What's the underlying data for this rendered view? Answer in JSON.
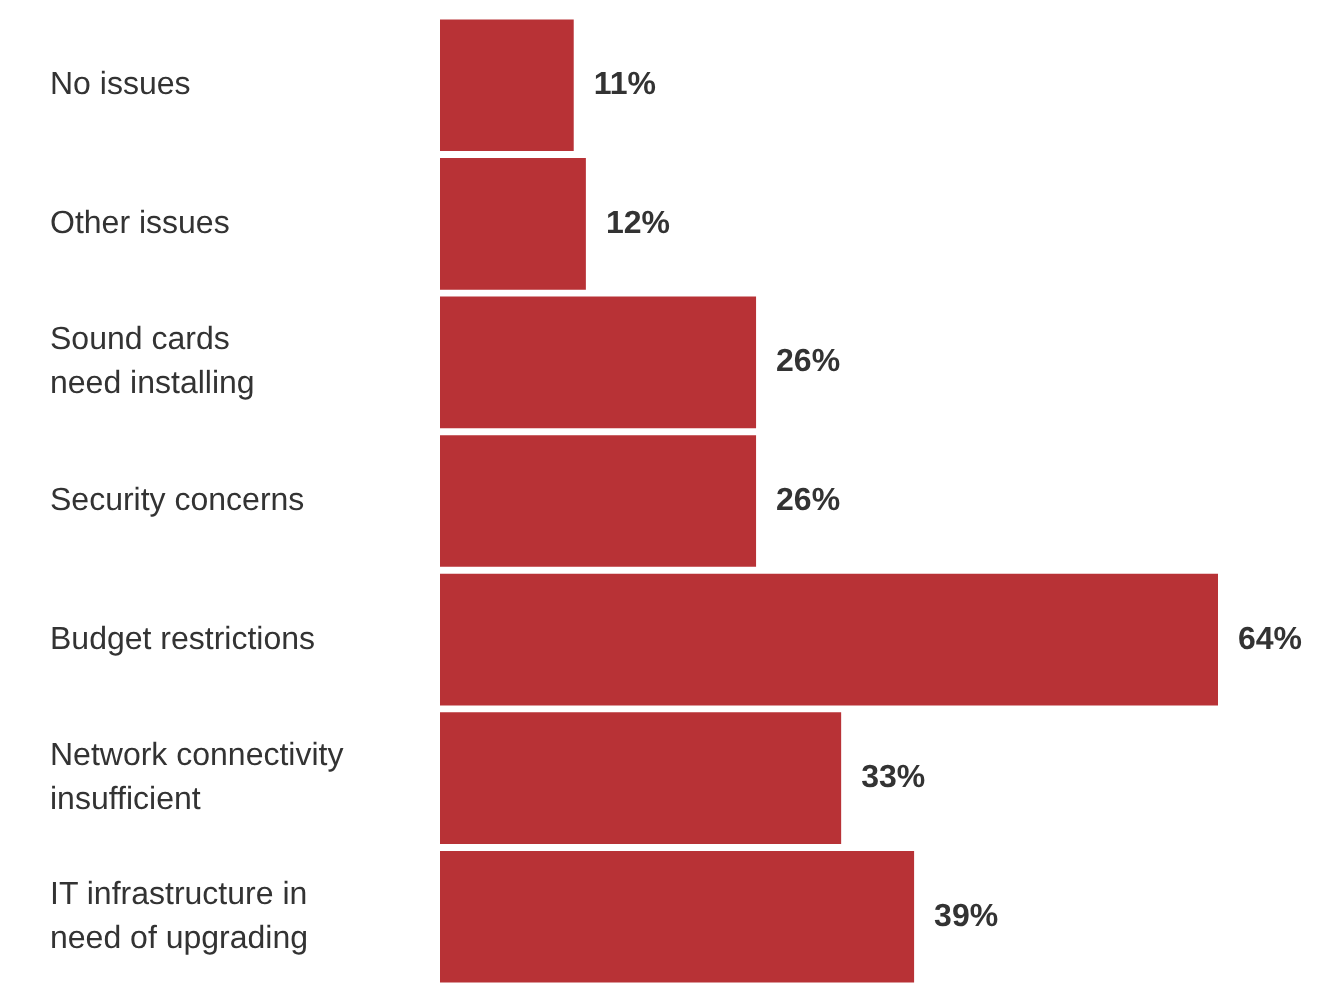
{
  "chart_data": {
    "type": "bar",
    "orientation": "horizontal",
    "categories": [
      "No issues",
      "Other issues",
      "Sound cards\nneed installing",
      "Security concerns",
      "Budget restrictions",
      "Network connectivity\ninsufficient",
      "IT infrastructure in\nneed of upgrading"
    ],
    "values": [
      11,
      12,
      26,
      26,
      64,
      33,
      39
    ],
    "color": "#b83236",
    "data_labels": true,
    "value_labels": [
      "11%",
      "12%",
      "26%",
      "26%",
      "64%",
      "33%",
      "39%"
    ]
  }
}
